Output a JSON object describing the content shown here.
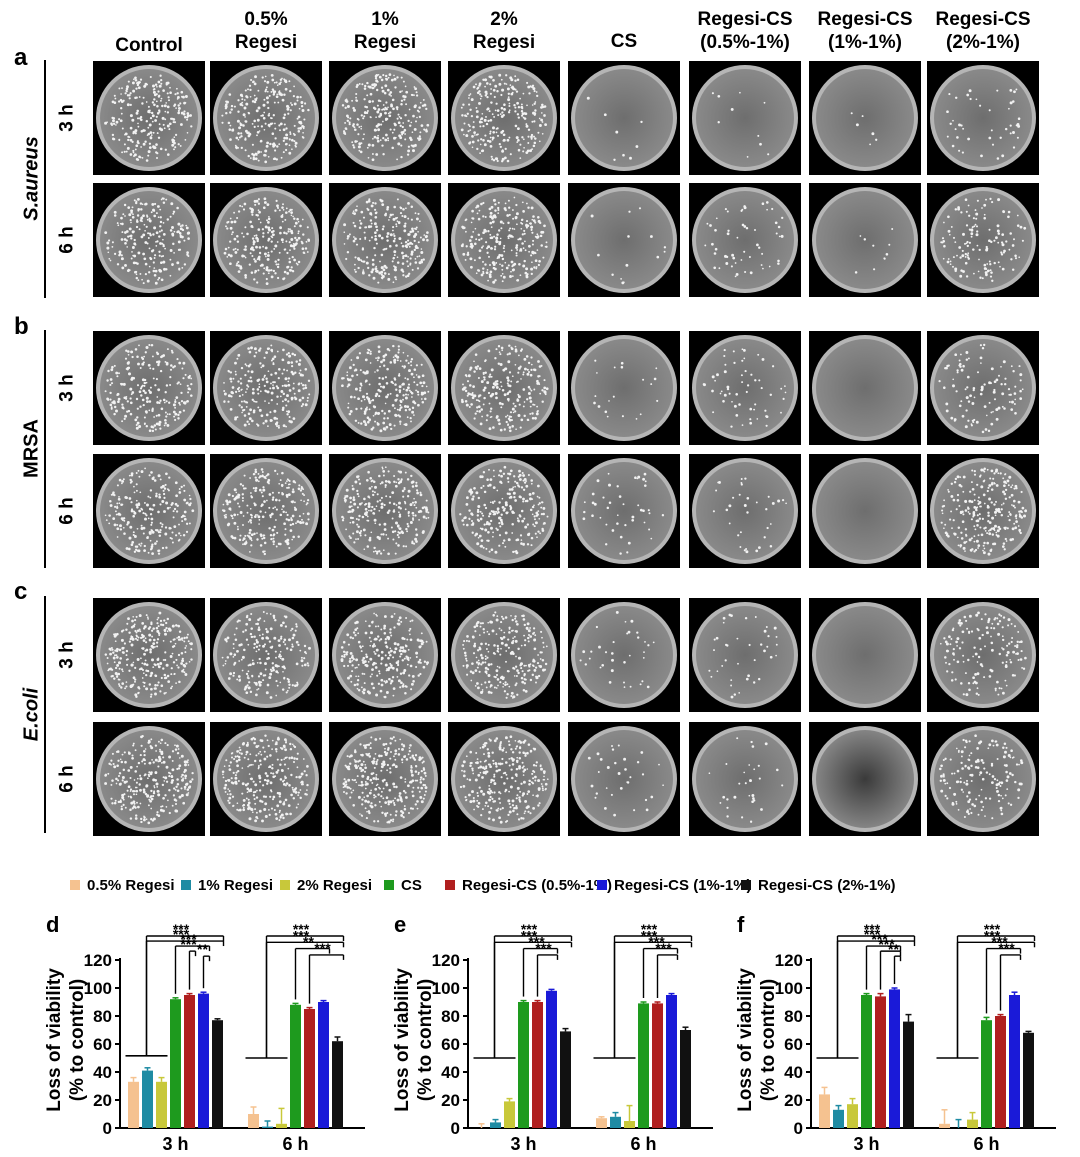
{
  "columns": [
    "Control",
    "0.5%\nRegesi",
    "1%\nRegesi",
    "2%\nRegesi",
    "CS",
    "Regesi-CS\n(0.5%-1%)",
    "Regesi-CS\n(1%-1%)",
    "Regesi-CS\n(2%-1%)"
  ],
  "panels": [
    {
      "letter": "a",
      "organism": "S.aureus",
      "italic": true,
      "times": [
        "3 h",
        "6 h"
      ],
      "colonies": [
        [
          260,
          260,
          260,
          260,
          8,
          10,
          6,
          45
        ],
        [
          230,
          250,
          250,
          270,
          14,
          55,
          10,
          140
        ]
      ]
    },
    {
      "letter": "b",
      "organism": "MRSA",
      "italic": false,
      "times": [
        "3 h",
        "6 h"
      ],
      "colonies": [
        [
          230,
          240,
          250,
          240,
          20,
          60,
          0,
          110
        ],
        [
          230,
          250,
          260,
          250,
          45,
          35,
          0,
          260
        ]
      ]
    },
    {
      "letter": "c",
      "organism": "E.coli",
      "italic": true,
      "times": [
        "3 h",
        "6 h"
      ],
      "colonies": [
        [
          300,
          220,
          260,
          260,
          35,
          40,
          0,
          150
        ],
        [
          280,
          280,
          300,
          280,
          32,
          30,
          0,
          160
        ]
      ]
    }
  ],
  "legend": [
    {
      "label": "0.5% Regesi",
      "color": "#F5C290"
    },
    {
      "label": "1% Regesi",
      "color": "#1E8BA3"
    },
    {
      "label": "2% Regesi",
      "color": "#C8C83A"
    },
    {
      "label": "CS",
      "color": "#1E9A1E"
    },
    {
      "label": "Regesi-CS (0.5%-1%)",
      "color": "#B01F1F"
    },
    {
      "label": "Regesi-CS (1%-1%)",
      "color": "#1A1AD8"
    },
    {
      "label": "Regesi-CS (2%-1%)",
      "color": "#111111"
    }
  ],
  "chart_data": [
    {
      "type": "bar",
      "panel": "d",
      "ylabel_lines": [
        "Loss of viability",
        "(% to control)"
      ],
      "ylim": [
        0,
        120
      ],
      "yticks": [
        0,
        20,
        40,
        60,
        80,
        100,
        120
      ],
      "categories": [
        "3 h",
        "6 h"
      ],
      "series": [
        {
          "name": "0.5% Regesi",
          "values": [
            33,
            10
          ],
          "errors": [
            3,
            5
          ]
        },
        {
          "name": "1% Regesi",
          "values": [
            41,
            1
          ],
          "errors": [
            2,
            4
          ]
        },
        {
          "name": "2% Regesi",
          "values": [
            33,
            3
          ],
          "errors": [
            3,
            11
          ]
        },
        {
          "name": "CS",
          "values": [
            92,
            88
          ],
          "errors": [
            1,
            1
          ]
        },
        {
          "name": "Regesi-CS (0.5%-1%)",
          "values": [
            95,
            85
          ],
          "errors": [
            1,
            1
          ]
        },
        {
          "name": "Regesi-CS (1%-1%)",
          "values": [
            96,
            90
          ],
          "errors": [
            1,
            1
          ]
        },
        {
          "name": "Regesi-CS (2%-1%)",
          "values": [
            77,
            62
          ],
          "errors": [
            1,
            3
          ]
        }
      ],
      "significance": [
        [
          {
            "label": "***",
            "to": 6
          },
          {
            "label": "***",
            "to": 6
          },
          {
            "label": "***",
            "to": 5
          },
          {
            "label": "***",
            "to": 4
          },
          {
            "label": "**",
            "to": 5
          }
        ],
        [
          {
            "label": "***",
            "to": 6
          },
          {
            "label": "***",
            "to": 6
          },
          {
            "label": "**",
            "to": 5
          },
          {
            "label": "***",
            "to": 6
          }
        ]
      ]
    },
    {
      "type": "bar",
      "panel": "e",
      "ylabel_lines": [
        "Loss of viability",
        "(% to control)"
      ],
      "ylim": [
        0,
        120
      ],
      "yticks": [
        0,
        20,
        40,
        60,
        80,
        100,
        120
      ],
      "categories": [
        "3 h",
        "6 h"
      ],
      "series": [
        {
          "name": "0.5% Regesi",
          "values": [
            0,
            7
          ],
          "errors": [
            3,
            1
          ]
        },
        {
          "name": "1% Regesi",
          "values": [
            4,
            8
          ],
          "errors": [
            2,
            3
          ]
        },
        {
          "name": "2% Regesi",
          "values": [
            19,
            5
          ],
          "errors": [
            2,
            11
          ]
        },
        {
          "name": "CS",
          "values": [
            90,
            89
          ],
          "errors": [
            1,
            1
          ]
        },
        {
          "name": "Regesi-CS (0.5%-1%)",
          "values": [
            90,
            89
          ],
          "errors": [
            1,
            1
          ]
        },
        {
          "name": "Regesi-CS (1%-1%)",
          "values": [
            98,
            95
          ],
          "errors": [
            1,
            1
          ]
        },
        {
          "name": "Regesi-CS (2%-1%)",
          "values": [
            69,
            70
          ],
          "errors": [
            2,
            2
          ]
        }
      ],
      "significance": [
        [
          {
            "label": "***",
            "to": 6
          },
          {
            "label": "***",
            "to": 6
          },
          {
            "label": "***",
            "to": 5
          },
          {
            "label": "***",
            "to": 5
          }
        ],
        [
          {
            "label": "***",
            "to": 6
          },
          {
            "label": "***",
            "to": 6
          },
          {
            "label": "***",
            "to": 5
          },
          {
            "label": "***",
            "to": 5
          }
        ]
      ]
    },
    {
      "type": "bar",
      "panel": "f",
      "ylabel_lines": [
        "Loss of viability",
        "(% to control)"
      ],
      "ylim": [
        0,
        120
      ],
      "yticks": [
        0,
        20,
        40,
        60,
        80,
        100,
        120
      ],
      "categories": [
        "3 h",
        "6 h"
      ],
      "series": [
        {
          "name": "0.5% Regesi",
          "values": [
            24,
            3
          ],
          "errors": [
            5,
            10
          ]
        },
        {
          "name": "1% Regesi",
          "values": [
            13,
            0
          ],
          "errors": [
            3,
            6
          ]
        },
        {
          "name": "2% Regesi",
          "values": [
            17,
            6
          ],
          "errors": [
            4,
            5
          ]
        },
        {
          "name": "CS",
          "values": [
            95,
            77
          ],
          "errors": [
            1,
            2
          ]
        },
        {
          "name": "Regesi-CS (0.5%-1%)",
          "values": [
            94,
            80
          ],
          "errors": [
            2,
            1
          ]
        },
        {
          "name": "Regesi-CS (1%-1%)",
          "values": [
            99,
            95
          ],
          "errors": [
            1,
            2
          ]
        },
        {
          "name": "Regesi-CS (2%-1%)",
          "values": [
            76,
            68
          ],
          "errors": [
            5,
            1
          ]
        }
      ],
      "significance": [
        [
          {
            "label": "***",
            "to": 6
          },
          {
            "label": "***",
            "to": 6
          },
          {
            "label": "***",
            "to": 5
          },
          {
            "label": "***",
            "to": 5
          },
          {
            "label": "**",
            "to": 5
          }
        ],
        [
          {
            "label": "***",
            "to": 6
          },
          {
            "label": "***",
            "to": 6
          },
          {
            "label": "***",
            "to": 5
          },
          {
            "label": "***",
            "to": 5
          }
        ]
      ]
    }
  ]
}
